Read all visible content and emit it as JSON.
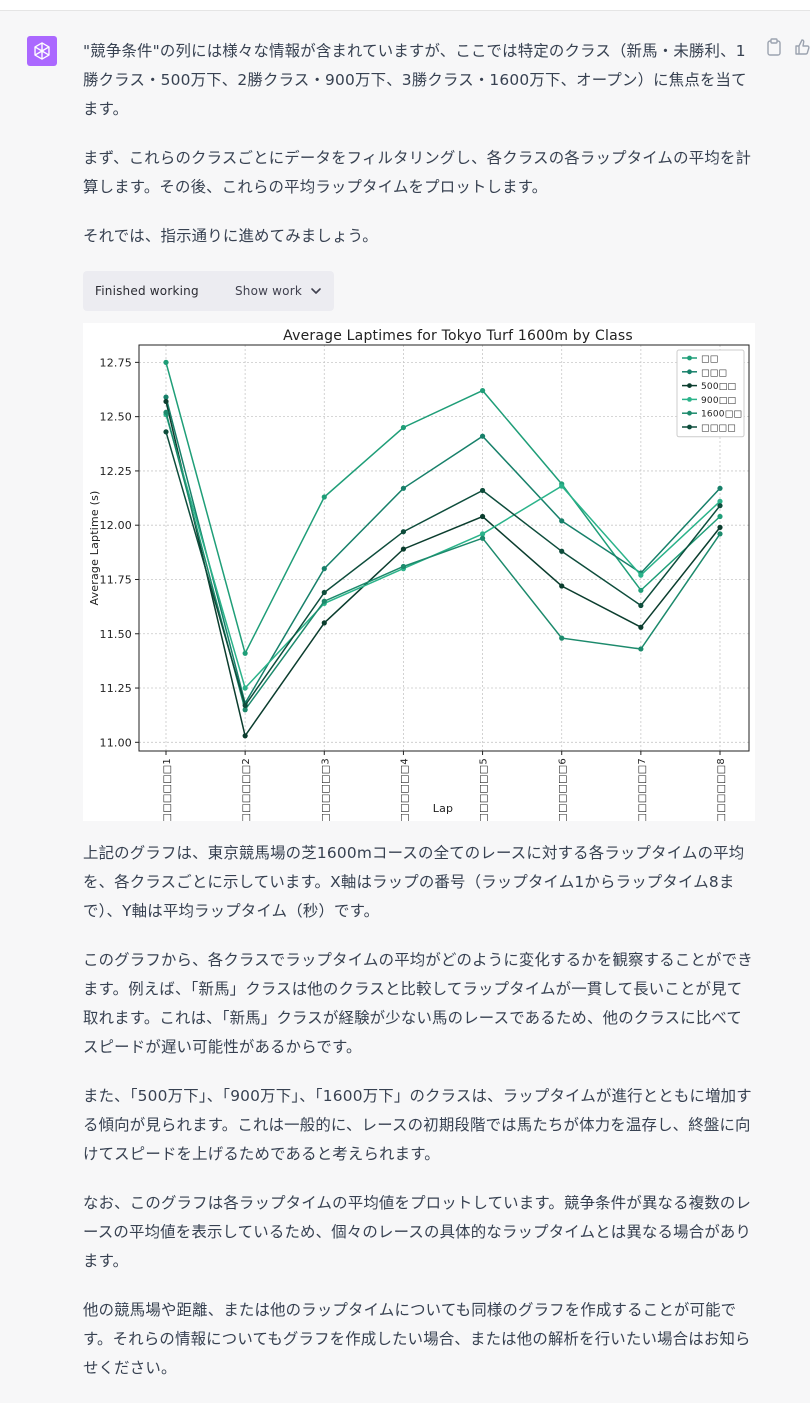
{
  "paragraphs_top": [
    "\"競争条件\"の列には様々な情報が含まれていますが、ここでは特定のクラス（新馬・未勝利、1勝クラス・500万下、2勝クラス・900万下、3勝クラス・1600万下、オープン）に焦点を当てます。",
    "まず、これらのクラスごとにデータをフィルタリングし、各クラスの各ラップタイムの平均を計算します。その後、これらの平均ラップタイムをプロットします。",
    "それでは、指示通りに進めてみましょう。"
  ],
  "working": {
    "status_label": "Finished working",
    "show_work_label": "Show work"
  },
  "paragraphs_bottom": [
    "上記のグラフは、東京競馬場の芝1600mコースの全てのレースに対する各ラップタイムの平均を、各クラスごとに示しています。X軸はラップの番号（ラップタイム1からラップタイム8まで）、Y軸は平均ラップタイム（秒）です。",
    "このグラフから、各クラスでラップタイムの平均がどのように変化するかを観察することができます。例えば、「新馬」クラスは他のクラスと比較してラップタイムが一貫して長いことが見て取れます。これは、「新馬」クラスが経験が少ない馬のレースであるため、他のクラスに比べてスピードが遅い可能性があるからです。",
    "また、「500万下」、「900万下」、「1600万下」のクラスは、ラップタイムが進行とともに増加する傾向が見られます。これは一般的に、レースの初期段階では馬たちが体力を温存し、終盤に向けてスピードを上げるためであると考えられます。",
    "なお、このグラフは各ラップタイムの平均値をプロットしています。競争条件が異なる複数のレースの平均値を表示しているため、個々のレースの具体的なラップタイムとは異なる場合があります。",
    "他の競馬場や距離、または他のラップタイムについても同様のグラフを作成することが可能です。それらの情報についてもグラフを作成したい場合、または他の解析を行いたい場合はお知らせください。"
  ],
  "icons": {
    "avatar": "openai-logo-icon",
    "copy": "clipboard-icon",
    "like": "thumbs-up-icon",
    "chevron": "chevron-down-icon"
  },
  "colors": {
    "avatar_bg": "#ab68ff",
    "series": [
      "#1f9e78",
      "#17806a",
      "#0b3d2e",
      "#2bb38a",
      "#1c8a6c",
      "#0e4d3c"
    ]
  },
  "chart_data": {
    "type": "line",
    "title": "Average Laptimes for Tokyo Turf 1600m by Class",
    "xlabel": "Lap",
    "ylabel": "Average Laptime (s)",
    "categories": [
      "□□□□□□1",
      "□□□□□□2",
      "□□□□□□3",
      "□□□□□□4",
      "□□□□□□5",
      "□□□□□□6",
      "□□□□□□7",
      "□□□□□□8"
    ],
    "ylim": [
      10.96,
      12.83
    ],
    "yticks": [
      11.0,
      11.25,
      11.5,
      11.75,
      12.0,
      12.25,
      12.5,
      12.75
    ],
    "grid": true,
    "legend_position": "top-right",
    "series": [
      {
        "name": "□□",
        "values": [
          12.75,
          11.41,
          12.13,
          12.45,
          12.62,
          12.19,
          11.7,
          12.04
        ]
      },
      {
        "name": "□□□",
        "values": [
          12.59,
          11.18,
          11.8,
          12.17,
          12.41,
          12.02,
          11.78,
          12.17
        ]
      },
      {
        "name": "500□□",
        "values": [
          12.57,
          11.03,
          11.55,
          11.89,
          12.04,
          11.72,
          11.53,
          11.99
        ]
      },
      {
        "name": "900□□",
        "values": [
          12.51,
          11.25,
          11.64,
          11.8,
          11.96,
          12.18,
          11.77,
          12.11
        ]
      },
      {
        "name": "1600□□",
        "values": [
          12.52,
          11.15,
          11.65,
          11.81,
          11.94,
          11.48,
          11.43,
          11.96
        ]
      },
      {
        "name": "□□□□",
        "values": [
          12.43,
          11.17,
          11.69,
          11.97,
          12.16,
          11.88,
          11.63,
          12.09
        ]
      }
    ]
  }
}
